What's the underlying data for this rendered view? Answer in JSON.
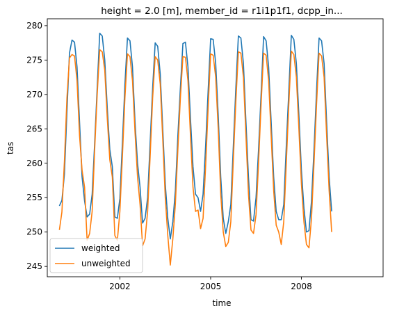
{
  "chart_data": {
    "type": "line",
    "title": "height = 2.0 [m], member_id = r1i1p1f1, dcpp_in...",
    "xlabel": "time",
    "ylabel": "tas",
    "x_start": "2000-01",
    "x_tick_labels": [
      "2002",
      "2005",
      "2008"
    ],
    "x_ticks": [
      2002,
      2005,
      2008
    ],
    "xlim": [
      1999.6,
      2010.7
    ],
    "y_ticks": [
      245,
      250,
      255,
      260,
      265,
      270,
      275,
      280
    ],
    "ylim": [
      243.5,
      281
    ],
    "legend_loc": "lower-left",
    "grid": false,
    "series": [
      {
        "name": "weighted",
        "color": "#1f77b4",
        "values": [
          253.8,
          254.6,
          258.4,
          267.5,
          276.0,
          277.9,
          277.6,
          274.0,
          266.0,
          258.0,
          254.5,
          252.2,
          252.6,
          255.5,
          263.0,
          271.0,
          278.9,
          278.5,
          275.0,
          268.0,
          262.0,
          259.5,
          252.2,
          252.0,
          254.9,
          263.0,
          271.5,
          278.2,
          277.8,
          274.0,
          266.0,
          260.0,
          256.5,
          251.3,
          252.0,
          255.0,
          263.0,
          271.0,
          277.5,
          277.0,
          273.0,
          265.0,
          257.0,
          252.0,
          249.0,
          251.5,
          256.0,
          264.0,
          271.0,
          277.4,
          277.6,
          274.0,
          266.5,
          259.5,
          255.5,
          255.0,
          253.0,
          255.5,
          262.5,
          270.5,
          278.1,
          278.0,
          274.5,
          267.0,
          258.0,
          252.0,
          249.8,
          251.5,
          254.0,
          262.5,
          271.0,
          278.5,
          278.2,
          274.5,
          266.0,
          258.0,
          251.8,
          251.6,
          255.0,
          262.0,
          270.0,
          278.4,
          277.8,
          274.0,
          266.0,
          258.0,
          253.0,
          251.8,
          251.8,
          254.0,
          262.5,
          270.5,
          278.6,
          278.0,
          274.5,
          267.0,
          259.0,
          253.5,
          250.0,
          250.2,
          254.5,
          262.0,
          270.5,
          278.2,
          277.8,
          274.5,
          266.0,
          258.0,
          253.0
        ]
      },
      {
        "name": "unweighted",
        "color": "#ff7f0e",
        "values": [
          250.3,
          252.9,
          260.3,
          269.5,
          275.3,
          275.8,
          275.6,
          272.0,
          264.0,
          259.0,
          256.5,
          248.8,
          249.8,
          253.0,
          262.0,
          270.0,
          276.5,
          276.2,
          273.5,
          266.5,
          260.5,
          258.0,
          249.5,
          248.8,
          253.0,
          261.0,
          269.5,
          275.9,
          275.5,
          272.0,
          264.5,
          258.0,
          254.0,
          248.0,
          249.0,
          253.0,
          261.0,
          269.5,
          275.5,
          275.0,
          271.5,
          263.5,
          255.0,
          249.5,
          245.2,
          249.0,
          254.0,
          262.0,
          269.5,
          275.5,
          275.4,
          272.0,
          264.0,
          256.5,
          253.0,
          253.2,
          250.5,
          252.0,
          259.5,
          268.0,
          275.9,
          275.7,
          272.5,
          265.0,
          255.5,
          250.0,
          247.9,
          248.5,
          251.5,
          260.5,
          269.0,
          276.2,
          276.0,
          272.5,
          264.0,
          255.5,
          250.3,
          249.8,
          252.5,
          260.0,
          268.5,
          276.0,
          275.7,
          272.0,
          264.0,
          256.0,
          251.0,
          250.0,
          248.2,
          251.5,
          260.0,
          268.5,
          276.3,
          275.8,
          272.5,
          265.0,
          257.0,
          251.5,
          248.2,
          247.7,
          252.0,
          260.0,
          268.5,
          276.0,
          275.6,
          272.5,
          264.0,
          256.0,
          250.0
        ]
      }
    ]
  }
}
